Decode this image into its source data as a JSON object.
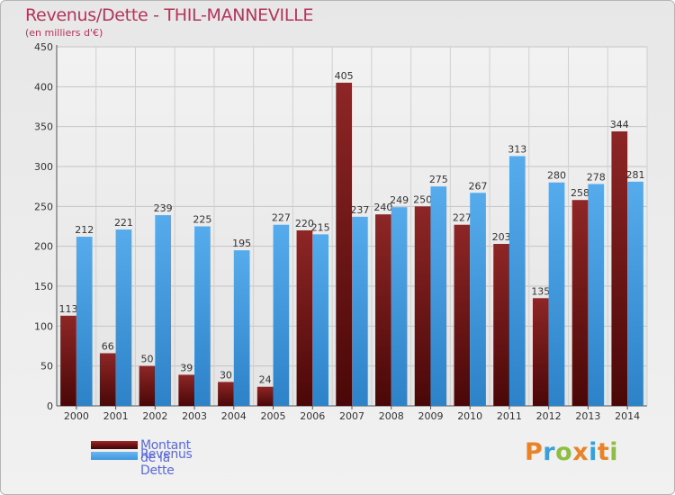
{
  "title": "Revenus/Dette - THIL-MANNEVILLE",
  "subtitle": "(en milliers d'€)",
  "legend": {
    "debt_label": "Montant de la Dette",
    "revenue_label": "Revenus"
  },
  "logo": {
    "letters": [
      {
        "char": "P",
        "color": "#e8832a"
      },
      {
        "char": "r",
        "color": "#3aa0d8"
      },
      {
        "char": "o",
        "color": "#8cbf3f"
      },
      {
        "char": "x",
        "color": "#e8832a"
      },
      {
        "char": "i",
        "color": "#3aa0d8"
      },
      {
        "char": "t",
        "color": "#e8832a"
      },
      {
        "char": "i",
        "color": "#8cbf3f"
      }
    ]
  },
  "colors": {
    "debt": "#7a1515",
    "revenue": "#3d97de",
    "title": "#b5345a",
    "legend_text": "#5a6ad8"
  },
  "chart_data": {
    "type": "bar",
    "categories": [
      "2000",
      "2001",
      "2002",
      "2003",
      "2004",
      "2005",
      "2006",
      "2007",
      "2008",
      "2009",
      "2010",
      "2011",
      "2012",
      "2013",
      "2014"
    ],
    "series": [
      {
        "name": "Montant de la Dette",
        "values": [
          113,
          66,
          50,
          39,
          30,
          24,
          220,
          405,
          240,
          250,
          227,
          203,
          135,
          258,
          344
        ]
      },
      {
        "name": "Revenus",
        "values": [
          212,
          221,
          239,
          225,
          195,
          227,
          215,
          237,
          249,
          275,
          267,
          313,
          280,
          278,
          281
        ]
      }
    ],
    "y_ticks": [
      0,
      50,
      100,
      150,
      200,
      250,
      300,
      350,
      400,
      450
    ],
    "ylim": [
      0,
      450
    ],
    "grid": true,
    "legend_position": "bottom-left"
  }
}
